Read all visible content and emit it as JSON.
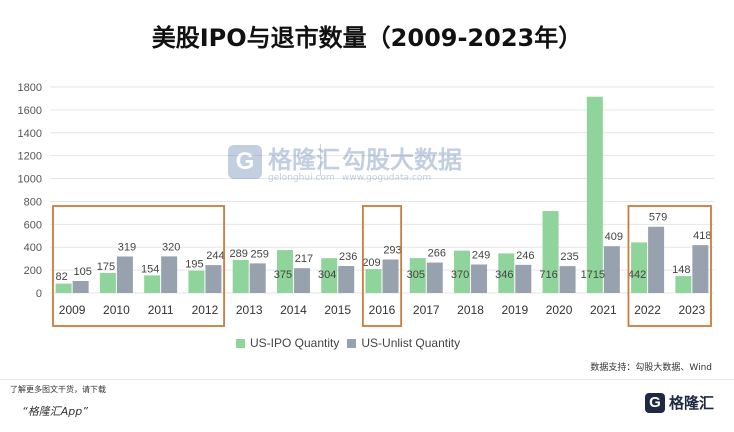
{
  "header": {
    "title": "美股IPO与退市数量（2009-2023年）"
  },
  "watermark": {
    "brand": "格隆汇",
    "brand_url": "gelonghui.com",
    "partner": "勾股大数据",
    "partner_url": "www.gogudata.com"
  },
  "colors": {
    "ipo": "#8fd49a",
    "unlist": "#98a2ae",
    "highlight": "#c97d3b",
    "grid": "#e6e6e6"
  },
  "chart_data": {
    "type": "bar",
    "title": "美股IPO与退市数量（2009-2023年）",
    "xlabel": "",
    "ylabel": "",
    "ylim": [
      0,
      1800
    ],
    "yticks": [
      0,
      200,
      400,
      600,
      800,
      1000,
      1200,
      1400,
      1600,
      1800
    ],
    "categories": [
      "2009",
      "2010",
      "2011",
      "2012",
      "2013",
      "2014",
      "2015",
      "2016",
      "2017",
      "2018",
      "2019",
      "2020",
      "2021",
      "2022",
      "2023"
    ],
    "series": [
      {
        "name": "US-IPO Quantity",
        "values": [
          82,
          175,
          154,
          195,
          289,
          375,
          304,
          209,
          305,
          370,
          346,
          716,
          1715,
          442,
          148
        ]
      },
      {
        "name": "US-Unlist Quantity",
        "values": [
          105,
          319,
          320,
          244,
          259,
          217,
          236,
          293,
          266,
          249,
          246,
          235,
          409,
          579,
          418
        ]
      }
    ],
    "grid": true,
    "legend": "bottom-center",
    "highlighted_groups": [
      [
        "2009",
        "2012"
      ],
      [
        "2016",
        "2016"
      ],
      [
        "2022",
        "2023"
      ]
    ]
  },
  "footer": {
    "source": "数据支持：勾股大数据、Wind",
    "download_prompt": "了解更多图文干货，请下载",
    "app_name": "“格隆汇App”",
    "logo_text": "格隆汇",
    "logo_letter": "G"
  }
}
